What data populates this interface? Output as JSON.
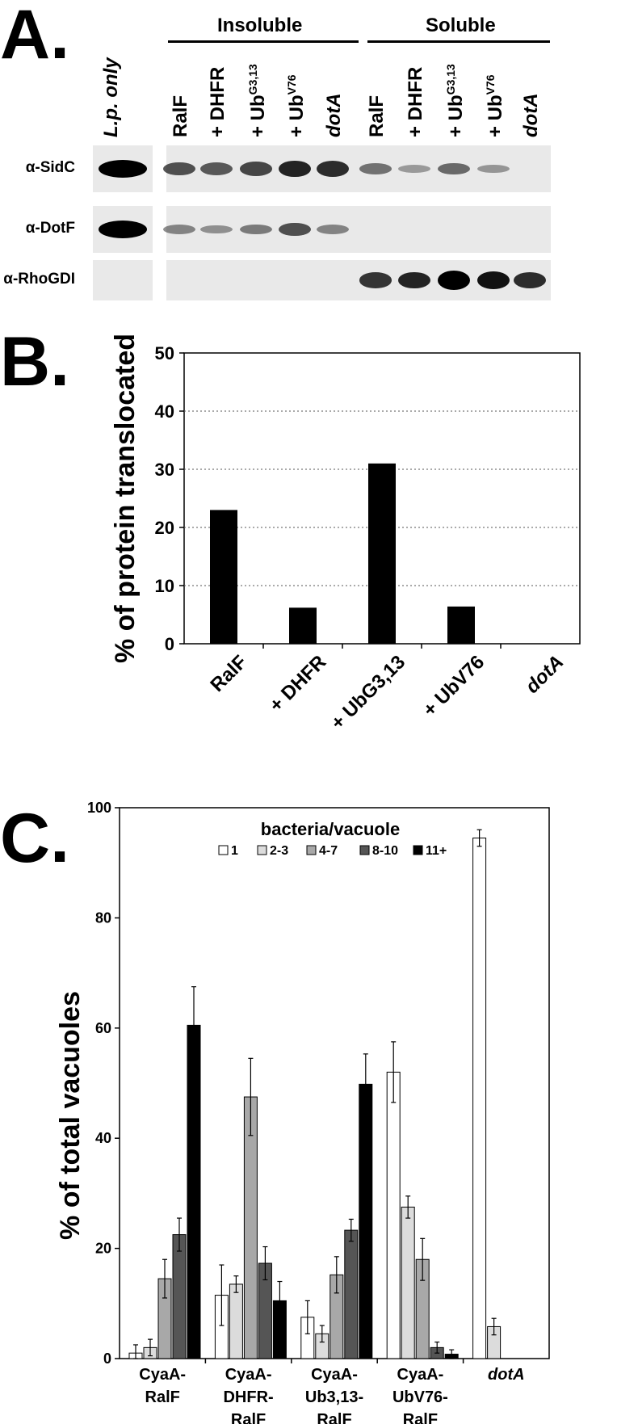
{
  "panels": {
    "a": "A.",
    "b": "B.",
    "c": "C."
  },
  "panel_a": {
    "group_insoluble": "Insoluble",
    "group_soluble": "Soluble",
    "lanes_first": [
      {
        "main": "L.p. only",
        "italic": true,
        "sup": ""
      }
    ],
    "lanes": [
      {
        "main": "RalF",
        "sup": "",
        "italic": false
      },
      {
        "main": "+ DHFR",
        "sup": "",
        "italic": false
      },
      {
        "main": "+ Ub",
        "sup": "G3,13",
        "italic": false
      },
      {
        "main": "+ Ub",
        "sup": "V76",
        "italic": false
      },
      {
        "main": "dotA",
        "sup": "",
        "italic": true
      },
      {
        "main": "RalF",
        "sup": "",
        "italic": false
      },
      {
        "main": "+ DHFR",
        "sup": "",
        "italic": false
      },
      {
        "main": "+ Ub",
        "sup": "G3,13",
        "italic": false
      },
      {
        "main": "+ Ub",
        "sup": "V76",
        "italic": false
      },
      {
        "main": "dotA",
        "sup": "",
        "italic": true
      }
    ],
    "rows": [
      {
        "label": "α-SidC",
        "lp": 1.0,
        "values": [
          0.55,
          0.5,
          0.6,
          0.8,
          0.75,
          0.35,
          0.12,
          0.4,
          0.15,
          0.0
        ]
      },
      {
        "label": "α-DotF",
        "lp": 1.0,
        "values": [
          0.25,
          0.18,
          0.3,
          0.55,
          0.25,
          0.0,
          0.0,
          0.0,
          0.0,
          0.0
        ]
      },
      {
        "label": "α-RhoGDI",
        "lp": 0.0,
        "values": [
          0.0,
          0.0,
          0.0,
          0.0,
          0.0,
          0.7,
          0.8,
          1.0,
          0.9,
          0.75
        ]
      }
    ]
  },
  "chart_data": [
    {
      "type": "bar",
      "title": "",
      "ylabel": "% of protein translocated",
      "xlabel": "",
      "categories": [
        "RalF",
        "+ DHFR",
        "+ UbG3,13",
        "+ UbV76",
        "dotA"
      ],
      "values": [
        23,
        6.2,
        31,
        6.4,
        0
      ],
      "ylim": [
        0,
        50
      ],
      "yticks": [
        "0",
        "10",
        "20",
        "30",
        "40",
        "50"
      ],
      "grid": "dotted horizontal",
      "colors": {
        "bar": "#000000"
      }
    },
    {
      "type": "bar",
      "title": "",
      "ylabel": "% of total vacuoles",
      "xlabel": "",
      "legend_title": "bacteria/vacuole",
      "legend_position": "top",
      "ylim": [
        0,
        100
      ],
      "yticks": [
        "0",
        "20",
        "40",
        "60",
        "80",
        "100"
      ],
      "categories": [
        {
          "line1": "CyaA-",
          "line2": "RalF",
          "line3": ""
        },
        {
          "line1": "CyaA-",
          "line2": "DHFR-",
          "line3": "RalF"
        },
        {
          "line1": "CyaA-",
          "line2": "Ub3,13-",
          "line3": "RalF"
        },
        {
          "line1": "CyaA-",
          "line2": "UbV76-",
          "line3": "RalF"
        },
        {
          "line1": "dotA",
          "line2": "",
          "line3": ""
        }
      ],
      "series": [
        {
          "name": "1",
          "color": "#ffffff",
          "values": [
            1,
            11.5,
            7.5,
            52,
            94.5
          ],
          "errors": [
            1.5,
            5.5,
            3,
            5.5,
            1.5
          ]
        },
        {
          "name": "2-3",
          "color": "#dcdcdc",
          "values": [
            2,
            13.5,
            4.5,
            27.5,
            5.8
          ],
          "errors": [
            1.5,
            1.5,
            1.5,
            2,
            1.5
          ]
        },
        {
          "name": "4-7",
          "color": "#a8a8a8",
          "values": [
            14.5,
            47.5,
            15.2,
            18,
            0
          ],
          "errors": [
            3.5,
            7,
            3.3,
            3.8,
            0
          ]
        },
        {
          "name": "8-10",
          "color": "#555555",
          "values": [
            22.5,
            17.3,
            23.3,
            2,
            0
          ],
          "errors": [
            3,
            3,
            2,
            1,
            0
          ]
        },
        {
          "name": "11+",
          "color": "#000000",
          "values": [
            60.5,
            10.5,
            49.8,
            0.8,
            0
          ],
          "errors": [
            7,
            3.5,
            5.5,
            0.8,
            0
          ]
        }
      ]
    }
  ]
}
